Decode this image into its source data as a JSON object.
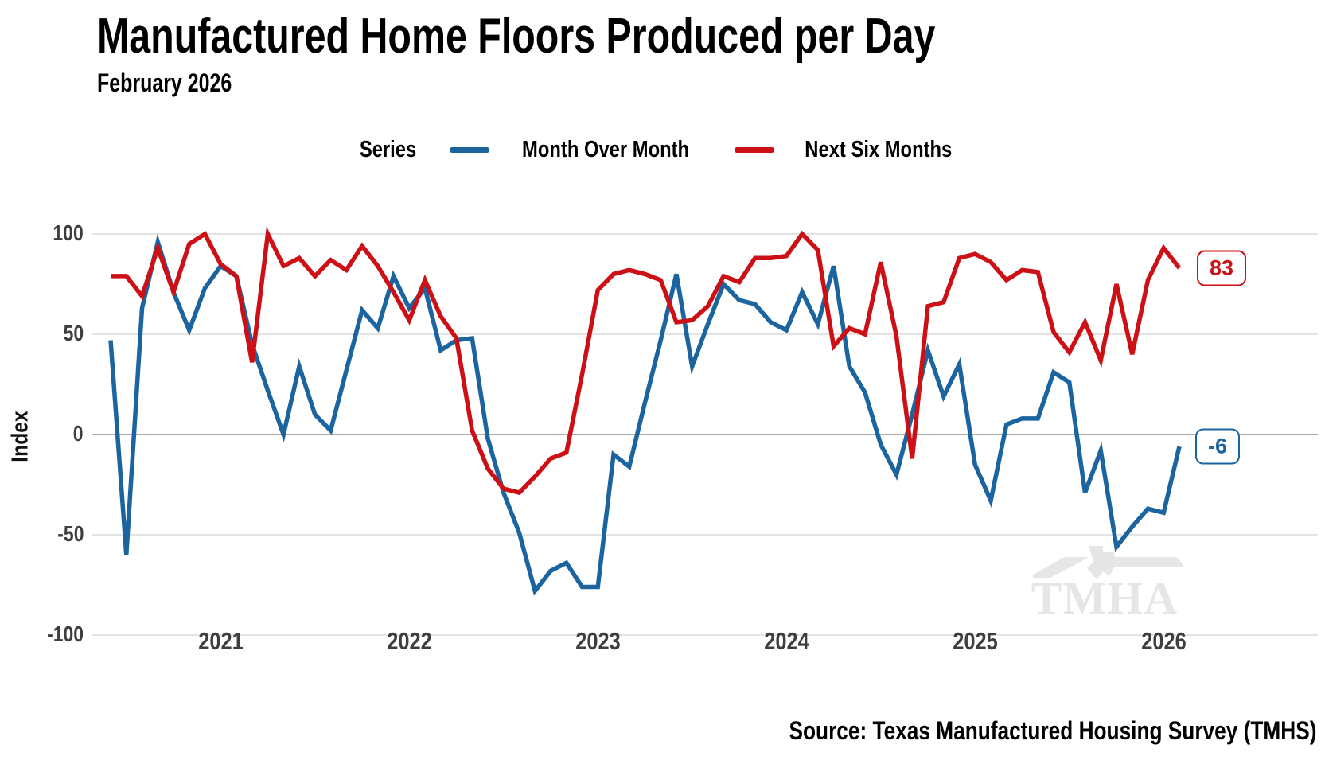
{
  "header": {
    "title": "Manufactured Home Floors Produced per Day",
    "subtitle": "February 2026"
  },
  "legend": {
    "label": "Series",
    "items": [
      {
        "name": "Month Over Month",
        "color": "#1b649f"
      },
      {
        "name": "Next Six Months",
        "color": "#cc1016"
      }
    ]
  },
  "chart_data": {
    "type": "line",
    "title": "Manufactured Home Floors Produced per Day",
    "ylabel": "Index",
    "xlabel": "",
    "ylim": [
      -100,
      100
    ],
    "yticks": [
      100,
      50,
      0,
      -50,
      -100
    ],
    "grid": "horizontal",
    "legend_position": "top-center",
    "months": [
      "2020-06",
      "2020-07",
      "2020-08",
      "2020-09",
      "2020-10",
      "2020-11",
      "2020-12",
      "2021-01",
      "2021-02",
      "2021-03",
      "2021-04",
      "2021-05",
      "2021-06",
      "2021-07",
      "2021-08",
      "2021-09",
      "2021-10",
      "2021-11",
      "2021-12",
      "2022-01",
      "2022-02",
      "2022-03",
      "2022-04",
      "2022-05",
      "2022-06",
      "2022-07",
      "2022-08",
      "2022-09",
      "2022-10",
      "2022-11",
      "2022-12",
      "2023-01",
      "2023-02",
      "2023-03",
      "2023-04",
      "2023-05",
      "2023-06",
      "2023-07",
      "2023-08",
      "2023-09",
      "2023-10",
      "2023-11",
      "2023-12",
      "2024-01",
      "2024-02",
      "2024-03",
      "2024-04",
      "2024-05",
      "2024-06",
      "2024-07",
      "2024-08",
      "2024-09",
      "2024-10",
      "2024-11",
      "2024-12",
      "2025-01",
      "2025-02",
      "2025-03",
      "2025-04",
      "2025-05",
      "2025-06",
      "2025-07",
      "2025-08",
      "2025-09",
      "2025-10",
      "2025-11",
      "2025-12",
      "2026-01",
      "2026-02"
    ],
    "series": [
      {
        "name": "Month Over Month",
        "color": "#1b649f",
        "end_label": "-6",
        "values": [
          47,
          -60,
          63,
          96,
          71,
          52,
          73,
          84,
          79,
          45,
          22,
          0,
          34,
          10,
          2,
          32,
          62,
          53,
          79,
          63,
          73,
          42,
          47,
          48,
          -2,
          -29,
          -49,
          -78,
          -68,
          -64,
          -76,
          -76,
          -10,
          -16,
          16,
          47,
          80,
          34,
          55,
          75,
          67,
          65,
          56,
          52,
          71,
          55,
          84,
          34,
          21,
          -5,
          -20,
          10,
          42,
          19,
          35,
          -15,
          -33,
          5,
          8,
          8,
          31,
          26,
          -29,
          -8,
          -56,
          -46,
          -37,
          -39,
          -6
        ]
      },
      {
        "name": "Next Six Months",
        "color": "#cc1016",
        "end_label": "83",
        "values": [
          79,
          79,
          69,
          93,
          71,
          95,
          100,
          85,
          79,
          36,
          100,
          84,
          88,
          79,
          87,
          82,
          94,
          84,
          71,
          57,
          77,
          59,
          48,
          2,
          -17,
          -27,
          -29,
          -21,
          -12,
          -9,
          30,
          72,
          80,
          82,
          80,
          77,
          56,
          57,
          64,
          79,
          76,
          88,
          88,
          89,
          100,
          92,
          44,
          53,
          50,
          86,
          49,
          -12,
          64,
          66,
          88,
          90,
          86,
          77,
          82,
          81,
          51,
          41,
          56,
          37,
          75,
          40,
          77,
          93,
          83
        ]
      }
    ],
    "xticks": [
      {
        "label": "2021",
        "month_index": 7
      },
      {
        "label": "2022",
        "month_index": 19
      },
      {
        "label": "2023",
        "month_index": 31
      },
      {
        "label": "2024",
        "month_index": 43
      },
      {
        "label": "2025",
        "month_index": 55
      },
      {
        "label": "2026",
        "month_index": 67
      }
    ]
  },
  "colors": {
    "grid": "#e3e3e3",
    "zero_line": "#ababab",
    "tick_text": "#3e3e3e"
  },
  "watermark": "TMHA",
  "source": "Source: Texas Manufactured Housing Survey (TMHS)"
}
